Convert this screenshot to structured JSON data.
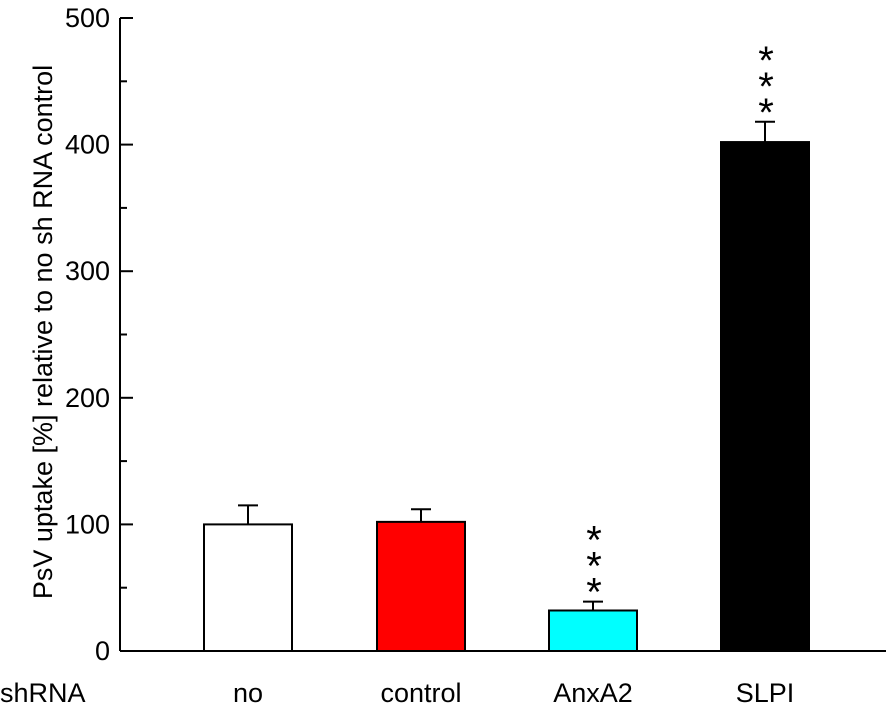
{
  "chart_data": {
    "type": "bar",
    "title": "",
    "xlabel": "",
    "ylabel": "PsV uptake [%] relative to no sh RNA control",
    "x_prefix_label": "shRNA",
    "categories": [
      "no",
      "control",
      "AnxA2",
      "SLPI"
    ],
    "values": [
      100,
      102,
      32,
      402
    ],
    "errors": [
      15,
      10,
      7,
      16
    ],
    "significance": [
      "",
      "",
      "***",
      "***"
    ],
    "bar_colors": [
      "#ffffff",
      "#ff0000",
      "#00ffff",
      "#000000"
    ],
    "ylim": [
      0,
      500
    ],
    "yticks": [
      0,
      100,
      200,
      300,
      400,
      500
    ],
    "ytick_labels": [
      "0",
      "100",
      "200",
      "300",
      "400",
      "500"
    ],
    "y_minor_step": 50,
    "grid": false
  }
}
